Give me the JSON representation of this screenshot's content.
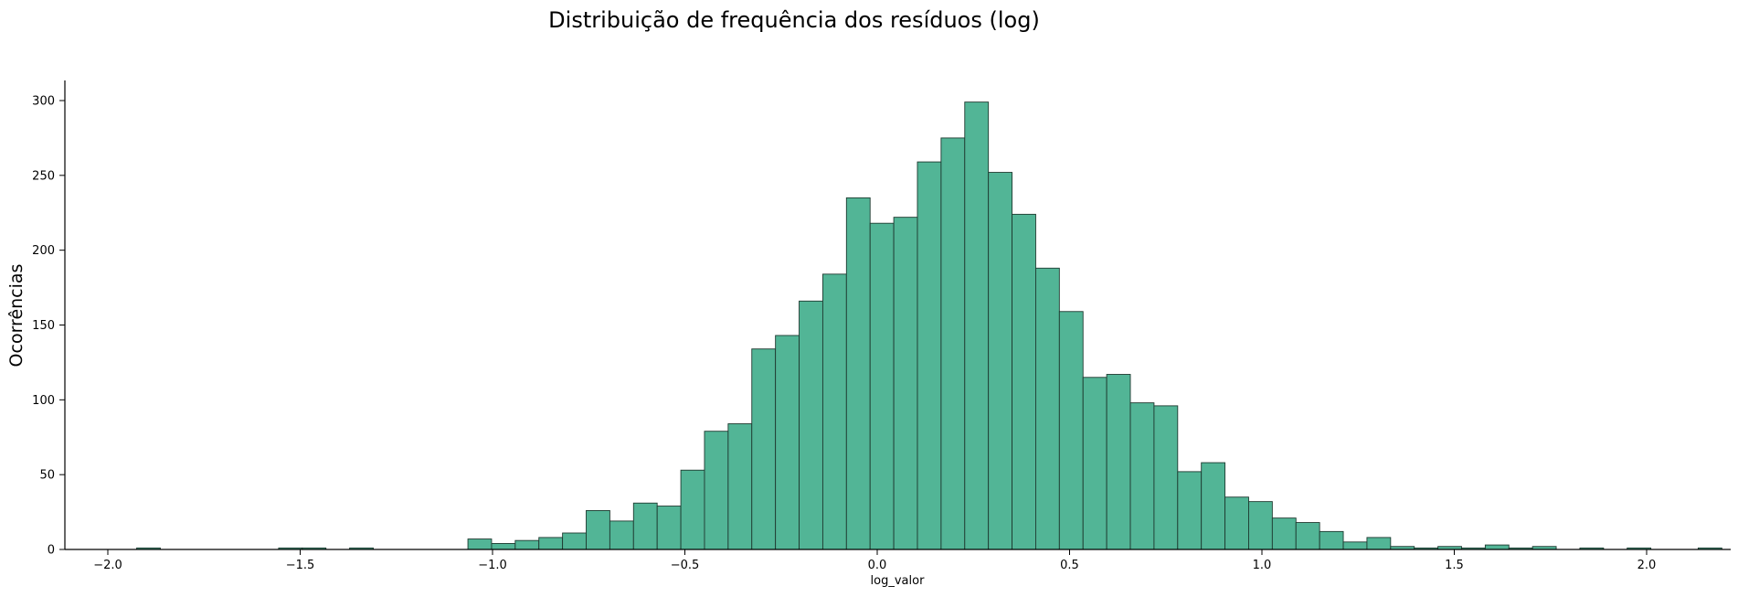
{
  "chart_data": {
    "type": "bar",
    "title": "Distribuição de frequência dos resíduos (log)",
    "xlabel": "log_valor",
    "ylabel": "Ocorrências",
    "xlim": [
      -2.12,
      2.2
    ],
    "ylim": [
      0,
      312
    ],
    "x_ticks": [
      -2.0,
      -1.5,
      -1.0,
      -0.5,
      0.0,
      0.5,
      1.0,
      1.5,
      2.0
    ],
    "x_tick_labels": [
      "−2.0",
      "−1.5",
      "−1.0",
      "−0.5",
      "0.0",
      "0.5",
      "1.0",
      "1.5",
      "2.0"
    ],
    "y_ticks": [
      0,
      50,
      100,
      150,
      200,
      250,
      300
    ],
    "y_tick_labels": [
      "0",
      "50",
      "100",
      "150",
      "200",
      "250",
      "300"
    ],
    "grid": false,
    "bar_color": "#52b596",
    "edge_color": "#1e3a30",
    "bin_width": 0.0615,
    "bin_start": -1.925,
    "counts": [
      1,
      0,
      0,
      0,
      0,
      0,
      1,
      1,
      0,
      1,
      0,
      0,
      0,
      0,
      7,
      4,
      6,
      8,
      11,
      26,
      19,
      31,
      29,
      53,
      79,
      84,
      134,
      143,
      166,
      184,
      235,
      218,
      222,
      259,
      275,
      299,
      252,
      224,
      188,
      159,
      115,
      117,
      98,
      96,
      52,
      58,
      35,
      32,
      21,
      18,
      12,
      5,
      8,
      2,
      1,
      2,
      1,
      3,
      1,
      2,
      0,
      1,
      0,
      1,
      0,
      0,
      1
    ]
  }
}
